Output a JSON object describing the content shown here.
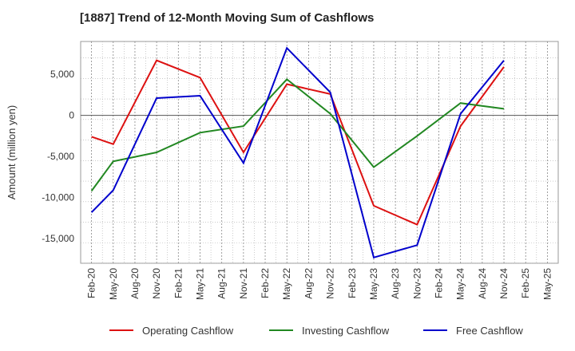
{
  "chart_data": {
    "type": "line",
    "title": "[1887]  Trend of 12-Month Moving Sum of Cashflows",
    "xlabel": "",
    "ylabel": "Amount (million yen)",
    "ylim": [
      -18000,
      9000
    ],
    "yticks": [
      5000,
      0,
      -5000,
      -10000,
      -15000
    ],
    "ytick_labels": [
      "5,000",
      "0",
      "-5,000",
      "-10,000",
      "-15,000"
    ],
    "grid": true,
    "legend_position": "bottom",
    "categories": [
      "Feb-20",
      "May-20",
      "Aug-20",
      "Nov-20",
      "Feb-21",
      "May-21",
      "Aug-21",
      "Nov-21",
      "Feb-22",
      "May-22",
      "Aug-22",
      "Nov-22",
      "Feb-23",
      "May-23",
      "Aug-23",
      "Nov-23",
      "Feb-24",
      "May-24",
      "Aug-24",
      "Nov-24",
      "Feb-25",
      "May-25"
    ],
    "series": [
      {
        "name": "Operating Cashflow",
        "color": "#dd1111",
        "values": [
          -2600,
          -3500,
          null,
          6700,
          null,
          4600,
          null,
          -4500,
          null,
          3800,
          null,
          2600,
          null,
          -11000,
          null,
          -13300,
          null,
          -1300,
          null,
          5900,
          null,
          null
        ]
      },
      {
        "name": "Investing Cashflow",
        "color": "#228822",
        "values": [
          -9200,
          -5600,
          null,
          -4500,
          null,
          -2100,
          null,
          -1300,
          null,
          4400,
          null,
          200,
          null,
          -6300,
          null,
          -2500,
          null,
          1500,
          null,
          800,
          null,
          null
        ]
      },
      {
        "name": "Free Cashflow",
        "color": "#0000cc",
        "values": [
          -11800,
          -9100,
          null,
          2100,
          null,
          2400,
          null,
          -5800,
          null,
          8200,
          null,
          2800,
          null,
          -17300,
          null,
          -15800,
          null,
          200,
          null,
          6700,
          null,
          null
        ]
      }
    ]
  }
}
